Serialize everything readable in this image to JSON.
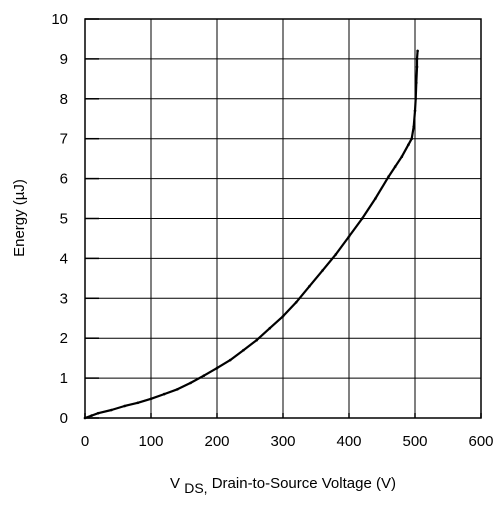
{
  "chart_data": {
    "type": "line",
    "title": "",
    "xlabel_main": "V",
    "xlabel_sub": "DS,",
    "xlabel_rest": " Drain-to-Source Voltage (V)",
    "ylabel": "Energy (µJ)",
    "xlim": [
      0,
      600
    ],
    "ylim": [
      0,
      10
    ],
    "x_ticks": [
      "0",
      "100",
      "200",
      "300",
      "400",
      "500",
      "600"
    ],
    "y_ticks": [
      "0",
      "1",
      "2",
      "3",
      "4",
      "5",
      "6",
      "7",
      "8",
      "9",
      "10"
    ],
    "grid": true,
    "line_color": "#000000",
    "series": [
      {
        "x": [
          0,
          10,
          20,
          40,
          60,
          80,
          100,
          120,
          140,
          160,
          180,
          200,
          220,
          240,
          260,
          280,
          300,
          320,
          340,
          360,
          380,
          400,
          420,
          440,
          460,
          470,
          480,
          490,
          495,
          498,
          500,
          501,
          502,
          503,
          503,
          504
        ],
        "y": [
          0,
          0.06,
          0.12,
          0.2,
          0.3,
          0.38,
          0.48,
          0.6,
          0.72,
          0.88,
          1.06,
          1.25,
          1.45,
          1.7,
          1.95,
          2.25,
          2.55,
          2.9,
          3.3,
          3.7,
          4.1,
          4.55,
          5.0,
          5.5,
          6.05,
          6.3,
          6.55,
          6.85,
          7.0,
          7.3,
          7.7,
          8.0,
          8.4,
          8.8,
          9.0,
          9.2
        ]
      }
    ]
  }
}
